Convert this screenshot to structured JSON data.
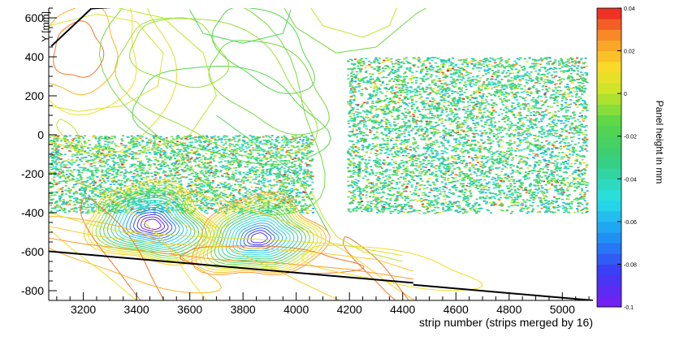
{
  "chart_data": {
    "type": "heatmap",
    "xlabel": "strip number (strips merged by 16)",
    "ylabel": "Y [mm]",
    "colorbar_label": "Panel height in mm",
    "xlim": [
      3070,
      5115
    ],
    "ylim": [
      -850,
      650
    ],
    "x_ticks": [
      3200,
      3400,
      3600,
      3800,
      4000,
      4200,
      4400,
      4600,
      4800,
      5000
    ],
    "y_ticks": [
      600,
      400,
      200,
      0,
      -200,
      -400,
      -600,
      -800
    ],
    "z_range": [
      -0.1,
      0.04
    ],
    "colorbar_ticks": [
      {
        "value": 0.04,
        "label": "0.04"
      },
      {
        "value": 0.02,
        "label": "0.02"
      },
      {
        "value": 0,
        "label": "0"
      },
      {
        "value": -0.02,
        "label": "-0.02"
      },
      {
        "value": -0.04,
        "label": "-0.04"
      },
      {
        "value": -0.06,
        "label": "-0.06"
      },
      {
        "value": -0.08,
        "label": "-0.08"
      },
      {
        "value": -0.1,
        "label": "-0.1"
      }
    ],
    "scatter_regions": [
      {
        "x": [
          3070,
          4060
        ],
        "y": [
          -400,
          0
        ]
      },
      {
        "x": [
          4190,
          5090
        ],
        "y": [
          -400,
          400
        ]
      }
    ],
    "contour_minima": [
      {
        "x": 3460,
        "y": -460,
        "z": -0.1
      },
      {
        "x": 3860,
        "y": -530,
        "z": -0.09
      }
    ],
    "contour_maxima": [
      {
        "x": 3180,
        "y": 430,
        "z": 0.03
      },
      {
        "x": 3350,
        "y": -620,
        "z": 0.03
      }
    ],
    "grid": false
  }
}
